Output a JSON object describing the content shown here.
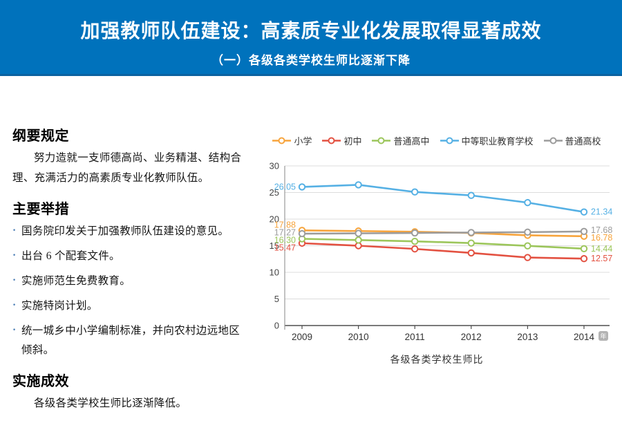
{
  "header": {
    "title": "加强教师队伍建设：高素质专业化发展取得显著成效",
    "subtitle": "（一）各级各类学校生师比逐渐下降",
    "bg_color": "#0072BC",
    "border_color": "#0b62a0"
  },
  "left_panel": {
    "bullet_color": "#4a7db5",
    "sections": [
      {
        "heading": "纲要规定",
        "paragraphs": [
          "努力造就一支师德高尚、业务精湛、结构合理、充满活力的高素质专业化教师队伍。"
        ]
      },
      {
        "heading": "主要举措",
        "bullets": [
          "国务院印发关于加强教师队伍建设的意见。",
          "出台 6 个配套文件。",
          "实施师范生免费教育。",
          "实施特岗计划。",
          "统一城乡中小学编制标准，并向农村边远地区倾斜。"
        ]
      },
      {
        "heading": "实施成效",
        "paragraphs": [
          "各级各类学校生师比逐渐降低。"
        ]
      }
    ]
  },
  "chart_data": {
    "type": "line",
    "title": "",
    "caption": "各级各类学校生师比",
    "x": [
      "2009",
      "2010",
      "2011",
      "2012",
      "2013",
      "2014"
    ],
    "x_unit_badge": "年",
    "ylim": [
      0,
      30
    ],
    "ytick_step": 5,
    "grid": true,
    "legend_position": "top",
    "colors": {
      "grid": "#dcdcdc",
      "axis": "#4d4d4d",
      "y_axis_line": "#999999",
      "tick_text": "#444444",
      "badge_bg": "#b3b3b3",
      "badge_text": "#ffffff"
    },
    "series": [
      {
        "name": "小学",
        "color": "#F7A43C",
        "values": [
          17.88,
          17.76,
          17.62,
          17.4,
          16.95,
          16.78
        ],
        "first_label": "17.88",
        "last_label": "16.78"
      },
      {
        "name": "初中",
        "color": "#E35141",
        "values": [
          15.47,
          15.0,
          14.4,
          13.65,
          12.78,
          12.57
        ],
        "first_label": "15.47",
        "last_label": "12.57"
      },
      {
        "name": "普通高中",
        "color": "#9CC65B",
        "values": [
          16.3,
          16.06,
          15.82,
          15.5,
          14.97,
          14.44
        ],
        "first_label": "16.30",
        "last_label": "14.44"
      },
      {
        "name": "中等职业教育学校",
        "color": "#55B0E4",
        "values": [
          26.05,
          26.44,
          25.1,
          24.45,
          23.1,
          21.34
        ],
        "first_label": "26.05",
        "last_label": "21.34"
      },
      {
        "name": "普通高校",
        "color": "#9C9C9C",
        "values": [
          17.27,
          17.32,
          17.4,
          17.48,
          17.55,
          17.68
        ],
        "first_label": "17.27",
        "last_label": "17.68"
      }
    ]
  }
}
